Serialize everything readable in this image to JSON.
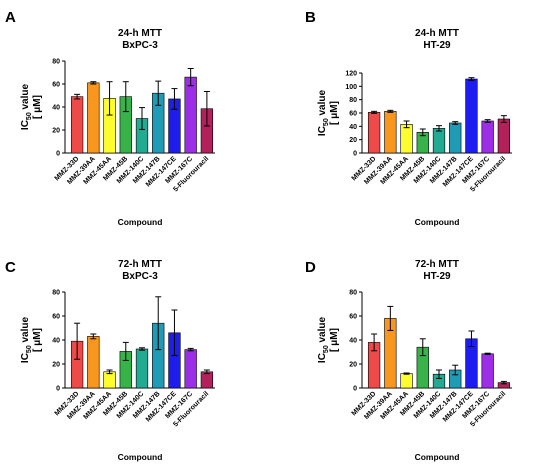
{
  "chart_data": [
    {
      "panel": "A",
      "type": "bar",
      "title": "24-h MTT",
      "subtitle": "BxPC-3",
      "xlabel": "Compound",
      "ylabel_main": "IC",
      "ylabel_sub": "50",
      "ylabel_rest": " value",
      "ylabel_unit": "[ μM]",
      "ylim": [
        0,
        80
      ],
      "yticks": [
        "0",
        "20",
        "40",
        "60",
        "80"
      ],
      "categories": [
        "MMZ-33D",
        "MMZ-39AA",
        "MMZ-45AA",
        "MMZ-45B",
        "MMZ-140C",
        "MMZ-147B",
        "MMZ-147CE",
        "MMZ-167C",
        "5-Fluorouracil"
      ],
      "values": [
        49,
        61,
        47.5,
        49,
        30,
        52,
        47,
        66,
        38.5
      ],
      "errors": [
        2,
        1,
        14.5,
        13,
        9.5,
        10.5,
        9,
        7.5,
        15
      ]
    },
    {
      "panel": "B",
      "type": "bar",
      "title": "24-h MTT",
      "subtitle": "HT-29",
      "xlabel": "Compound",
      "ylabel_main": "IC",
      "ylabel_sub": "50",
      "ylabel_rest": " value",
      "ylabel_unit": "[ μM]",
      "ylim": [
        0,
        120
      ],
      "yticks": [
        "0",
        "20",
        "40",
        "60",
        "80",
        "100",
        "120"
      ],
      "categories": [
        "MMZ-33D",
        "MMZ-39AA",
        "MMZ-45AA",
        "MMZ-45B",
        "MMZ-140C",
        "MMZ-147B",
        "MMZ-147CE",
        "MMZ-167C",
        "5-Fluorouracil"
      ],
      "values": [
        61,
        62.5,
        43,
        31,
        37,
        45,
        111,
        48,
        51
      ],
      "errors": [
        1.5,
        1.5,
        5,
        5,
        4,
        2,
        2,
        2,
        5
      ]
    },
    {
      "panel": "C",
      "type": "bar",
      "title": "72-h MTT",
      "subtitle": "BxPC-3",
      "xlabel": "Compound",
      "ylabel_main": "IC",
      "ylabel_sub": "50",
      "ylabel_rest": " value",
      "ylabel_unit": "[ μM]",
      "ylim": [
        0,
        80
      ],
      "yticks": [
        "0",
        "20",
        "40",
        "60",
        "80"
      ],
      "categories": [
        "MMZ-33D",
        "MMZ-39AA",
        "MMZ-45AA",
        "MMZ-45B",
        "MMZ-140C",
        "MMZ-147B",
        "MMZ-147CE",
        "MMZ-167C",
        "5-Fluorouracil"
      ],
      "values": [
        39,
        43,
        13.5,
        30.5,
        32.5,
        54,
        46,
        32,
        13.5
      ],
      "errors": [
        15,
        2,
        1.5,
        7.5,
        1,
        22,
        19,
        1,
        1.5
      ]
    },
    {
      "panel": "D",
      "type": "bar",
      "title": "72-h MTT",
      "subtitle": "HT-29",
      "xlabel": "Compound",
      "ylabel_main": "IC",
      "ylabel_sub": "50",
      "ylabel_rest": " value",
      "ylabel_unit": "[ μM]",
      "ylim": [
        0,
        80
      ],
      "yticks": [
        "0",
        "20",
        "40",
        "60",
        "80"
      ],
      "categories": [
        "MMZ-33D",
        "MMZ-39AA",
        "MMZ-45AA",
        "MMZ-45B",
        "MMZ-140C",
        "MMZ-147B",
        "MMZ-147CE",
        "MMZ-167C",
        "5-Fluorouracil"
      ],
      "values": [
        38,
        58,
        12,
        34,
        11.5,
        15,
        41,
        28.5,
        4.5
      ],
      "errors": [
        7,
        10,
        0.5,
        7,
        3.5,
        4,
        6.5,
        0.5,
        1
      ]
    }
  ],
  "colors": [
    "#ef4a4a",
    "#f8961d",
    "#fdfc2c",
    "#37b34a",
    "#22aa93",
    "#1f9bb5",
    "#1d1df0",
    "#9b2ee6",
    "#b2215a"
  ]
}
